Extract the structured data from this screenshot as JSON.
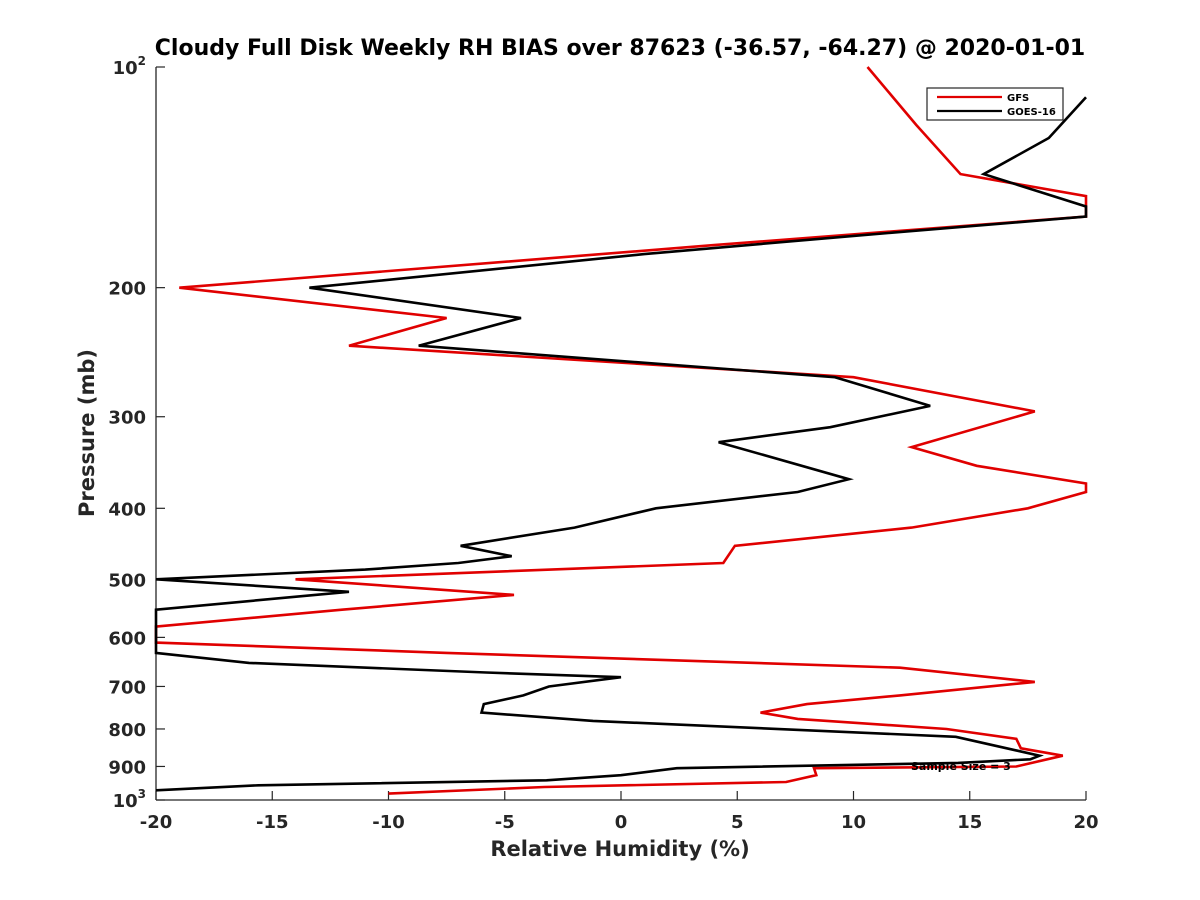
{
  "chart_data": {
    "type": "line",
    "title": "Cloudy Full Disk Weekly RH BIAS over 87623 (-36.57, -64.27) @ 2020-01-01",
    "xlabel": "Relative Humidity (%)",
    "ylabel": "Pressure (mb)",
    "xlim": [
      -20,
      20
    ],
    "ylim": [
      100,
      1000
    ],
    "y_scale": "log",
    "y_reversed": true,
    "x_ticks": [
      -20,
      -15,
      -10,
      -5,
      0,
      5,
      10,
      15,
      20
    ],
    "y_ticks": [
      {
        "value": 100,
        "base": "10",
        "exp": "2"
      },
      {
        "value": 200,
        "label": "200"
      },
      {
        "value": 300,
        "label": "300"
      },
      {
        "value": 400,
        "label": "400"
      },
      {
        "value": 500,
        "label": "500"
      },
      {
        "value": 600,
        "label": "600"
      },
      {
        "value": 700,
        "label": "700"
      },
      {
        "value": 800,
        "label": "800"
      },
      {
        "value": 900,
        "label": "900"
      },
      {
        "value": 1000,
        "base": "10",
        "exp": "3"
      }
    ],
    "legend": {
      "position": "top-right"
    },
    "annotation": "Sample Size = 3",
    "series": [
      {
        "name": "GFS",
        "color": "#e00000",
        "points": [
          [
            10.6,
            100
          ],
          [
            12.7,
            120
          ],
          [
            14.6,
            140
          ],
          [
            20.0,
            150
          ],
          [
            20.0,
            160
          ],
          [
            4.0,
            175
          ],
          [
            -19.0,
            200
          ],
          [
            -7.5,
            220
          ],
          [
            -11.7,
            240
          ],
          [
            10.0,
            265
          ],
          [
            17.8,
            295
          ],
          [
            12.5,
            330
          ],
          [
            15.3,
            350
          ],
          [
            20.0,
            370
          ],
          [
            20.0,
            380
          ],
          [
            17.5,
            400
          ],
          [
            12.5,
            425
          ],
          [
            4.9,
            450
          ],
          [
            4.4,
            475
          ],
          [
            -14.0,
            500
          ],
          [
            -4.6,
            525
          ],
          [
            -12.0,
            550
          ],
          [
            -20.0,
            580
          ],
          [
            -20.0,
            610
          ],
          [
            -7.5,
            630
          ],
          [
            12.0,
            660
          ],
          [
            17.8,
            690
          ],
          [
            12.0,
            720
          ],
          [
            8.0,
            740
          ],
          [
            6.0,
            760
          ],
          [
            7.6,
            775
          ],
          [
            14.0,
            800
          ],
          [
            17.0,
            825
          ],
          [
            17.2,
            850
          ],
          [
            19.0,
            870
          ],
          [
            17.0,
            900
          ],
          [
            8.3,
            905
          ],
          [
            8.4,
            925
          ],
          [
            7.1,
            945
          ],
          [
            -3.3,
            960
          ],
          [
            -10.0,
            980
          ]
        ]
      },
      {
        "name": "GOES-16",
        "color": "#000000",
        "points": [
          [
            20.0,
            110
          ],
          [
            18.4,
            125
          ],
          [
            15.6,
            140
          ],
          [
            20.0,
            155
          ],
          [
            20.0,
            160
          ],
          [
            10.0,
            170
          ],
          [
            1.0,
            180
          ],
          [
            -13.4,
            200
          ],
          [
            -4.3,
            220
          ],
          [
            -8.7,
            240
          ],
          [
            9.2,
            265
          ],
          [
            13.3,
            290
          ],
          [
            9.0,
            310
          ],
          [
            4.2,
            325
          ],
          [
            9.8,
            365
          ],
          [
            7.6,
            380
          ],
          [
            1.5,
            400
          ],
          [
            -2.0,
            425
          ],
          [
            -6.9,
            450
          ],
          [
            -4.7,
            465
          ],
          [
            -7.0,
            475
          ],
          [
            -11.0,
            485
          ],
          [
            -20.0,
            500
          ],
          [
            -11.7,
            520
          ],
          [
            -20.0,
            550
          ],
          [
            -20.0,
            630
          ],
          [
            -16.0,
            650
          ],
          [
            -5.8,
            670
          ],
          [
            0.0,
            680
          ],
          [
            -3.1,
            700
          ],
          [
            -4.2,
            720
          ],
          [
            -5.9,
            740
          ],
          [
            -6.0,
            760
          ],
          [
            -1.2,
            780
          ],
          [
            14.4,
            820
          ],
          [
            18.0,
            870
          ],
          [
            17.6,
            880
          ],
          [
            14.5,
            890
          ],
          [
            2.4,
            905
          ],
          [
            0.0,
            925
          ],
          [
            -3.2,
            940
          ],
          [
            -15.6,
            955
          ],
          [
            -20.0,
            970
          ]
        ]
      }
    ]
  }
}
